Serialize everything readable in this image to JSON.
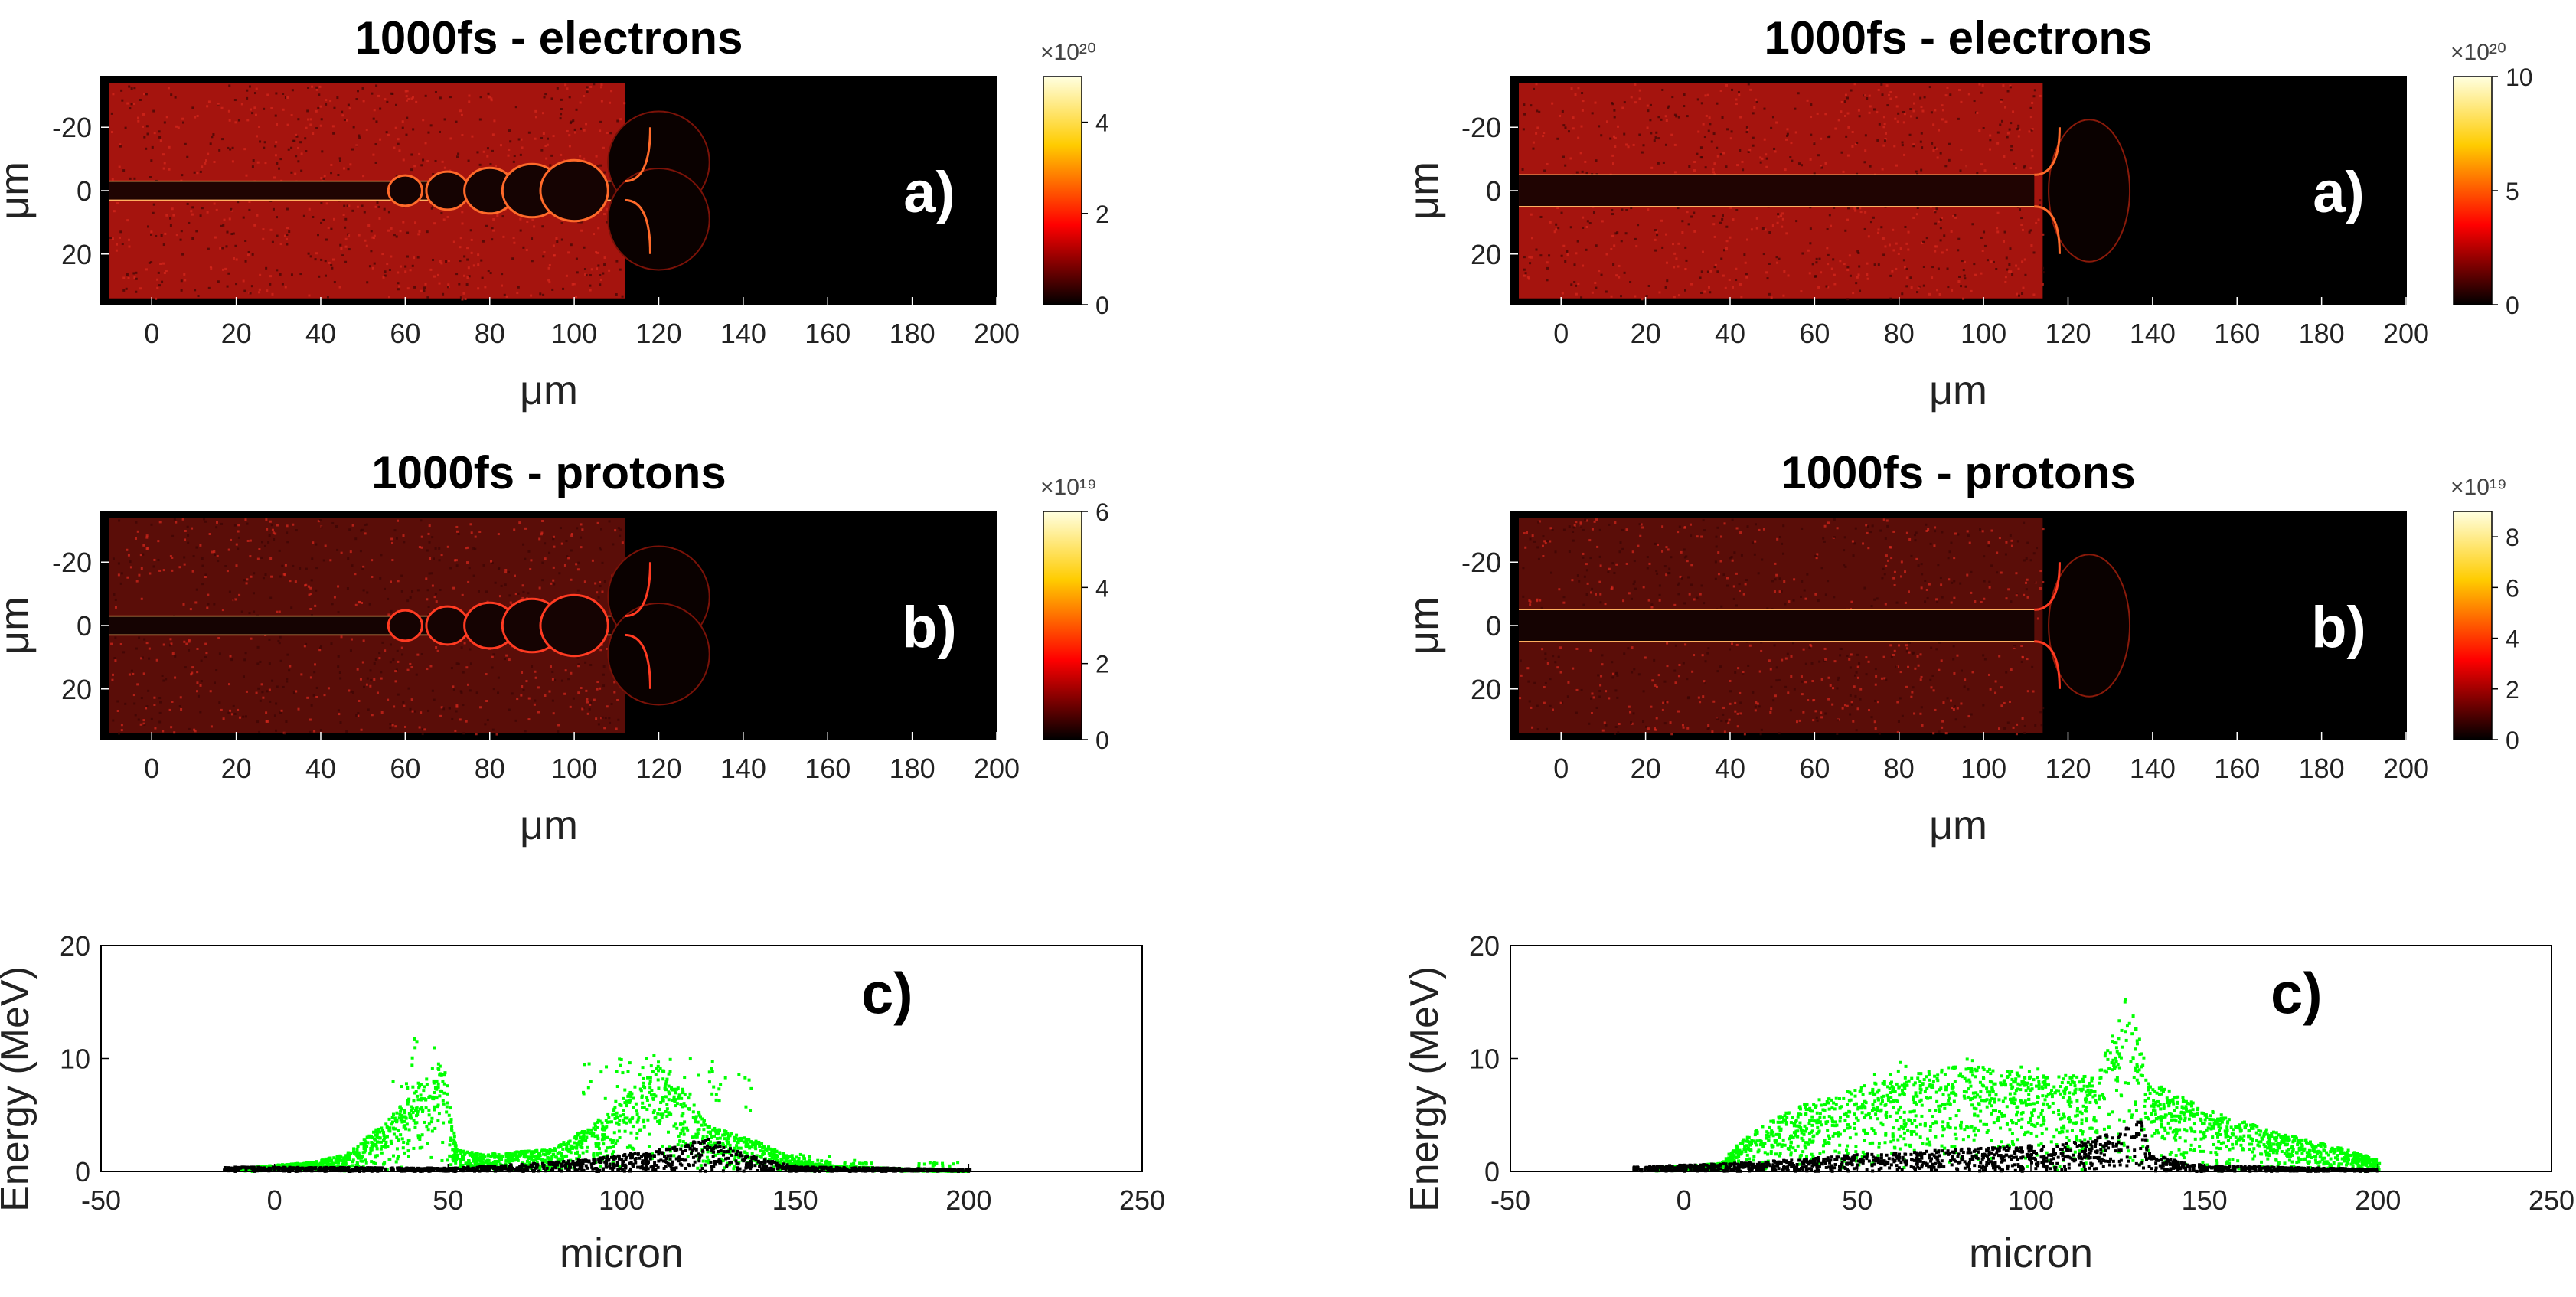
{
  "chart_data": [
    {
      "panel": "top-left",
      "type": "heatmap",
      "title": "1000fs - electrons",
      "label": "a)",
      "xlabel": "μm",
      "ylabel": "μm",
      "xlim": [
        -12,
        200
      ],
      "ylim": [
        -36,
        36
      ],
      "xticks": [
        0,
        20,
        40,
        60,
        80,
        100,
        120,
        140,
        160,
        180,
        200
      ],
      "yticks": [
        -20,
        0,
        20
      ],
      "colorbar": {
        "exponent": "×10²⁰",
        "min": 0,
        "max": 5,
        "ticks": [
          0,
          2,
          4
        ]
      },
      "colormap": "hot",
      "plasma_x_range": [
        -10,
        112
      ],
      "channel_halfwidth": 3,
      "bubbles": [
        [
          60,
          0,
          4
        ],
        [
          70,
          0,
          5
        ],
        [
          80,
          0,
          6
        ],
        [
          90,
          0,
          7
        ],
        [
          100,
          0,
          8
        ]
      ],
      "front_bubble": [
        120,
        9,
        12
      ]
    },
    {
      "panel": "top-right",
      "type": "heatmap",
      "title": "1000fs - electrons",
      "label": "a)",
      "xlabel": "μm",
      "ylabel": "μm",
      "xlim": [
        -12,
        200
      ],
      "ylim": [
        -36,
        36
      ],
      "xticks": [
        0,
        20,
        40,
        60,
        80,
        100,
        120,
        140,
        160,
        180,
        200
      ],
      "yticks": [
        -20,
        0,
        20
      ],
      "colorbar": {
        "exponent": "×10²⁰",
        "min": 0,
        "max": 10,
        "ticks": [
          0,
          5,
          10
        ]
      },
      "colormap": "hot",
      "plasma_x_range": [
        -10,
        114
      ],
      "channel_halfwidth": 5,
      "bubbles": [],
      "front_bubble": [
        125,
        0,
        12
      ]
    },
    {
      "panel": "middle-left",
      "type": "heatmap",
      "title": "1000fs - protons",
      "label": "b)",
      "xlabel": "μm",
      "ylabel": "μm",
      "xlim": [
        -12,
        200
      ],
      "ylim": [
        -36,
        36
      ],
      "xticks": [
        0,
        20,
        40,
        60,
        80,
        100,
        120,
        140,
        160,
        180,
        200
      ],
      "yticks": [
        -20,
        0,
        20
      ],
      "colorbar": {
        "exponent": "×10¹⁹",
        "min": 0,
        "max": 6,
        "ticks": [
          0,
          2,
          4,
          6
        ]
      },
      "colormap": "hot",
      "plasma_x_range": [
        -10,
        112
      ],
      "channel_halfwidth": 3,
      "bubbles": [
        [
          60,
          0,
          4
        ],
        [
          70,
          0,
          5
        ],
        [
          80,
          0,
          6
        ],
        [
          90,
          0,
          7
        ],
        [
          100,
          0,
          8
        ]
      ],
      "front_bubble": [
        120,
        9,
        12
      ]
    },
    {
      "panel": "middle-right",
      "type": "heatmap",
      "title": "1000fs - protons",
      "label": "b)",
      "xlabel": "μm",
      "ylabel": "μm",
      "xlim": [
        -12,
        200
      ],
      "ylim": [
        -36,
        36
      ],
      "xticks": [
        0,
        20,
        40,
        60,
        80,
        100,
        120,
        140,
        160,
        180,
        200
      ],
      "yticks": [
        -20,
        0,
        20
      ],
      "colorbar": {
        "exponent": "×10¹⁹",
        "min": 0,
        "max": 9,
        "ticks": [
          0,
          2,
          4,
          6,
          8
        ]
      },
      "colormap": "hot",
      "plasma_x_range": [
        -10,
        114
      ],
      "channel_halfwidth": 5,
      "bubbles": [],
      "front_bubble": [
        125,
        0,
        12
      ]
    },
    {
      "panel": "bottom-left",
      "type": "scatter",
      "label": "c)",
      "xlabel": "micron",
      "ylabel": "Energy (MeV)",
      "xlim": [
        -50,
        250
      ],
      "ylim": [
        0,
        20
      ],
      "xticks": [
        -50,
        0,
        50,
        100,
        150,
        200,
        250
      ],
      "yticks": [
        0,
        10,
        20
      ],
      "series": [
        {
          "name": "green",
          "color": "#00ff00",
          "envelope": [
            [
              -10,
              0.3
            ],
            [
              10,
              0.8
            ],
            [
              20,
              1.5
            ],
            [
              30,
              4
            ],
            [
              40,
              7
            ],
            [
              48,
              10.5
            ],
            [
              52,
              2
            ],
            [
              60,
              1.5
            ],
            [
              80,
              2
            ],
            [
              95,
              5
            ],
            [
              110,
              9.5
            ],
            [
              118,
              7
            ],
            [
              125,
              4
            ],
            [
              140,
              2.5
            ],
            [
              150,
              1
            ],
            [
              160,
              0.5
            ],
            [
              200,
              0
            ]
          ],
          "sparse": [
            [
              40,
              12
            ],
            [
              95,
              10
            ],
            [
              105,
              11
            ],
            [
              120,
              10.5
            ],
            [
              130,
              9
            ],
            [
              155,
              1.5
            ],
            [
              165,
              1
            ],
            [
              190,
              0.8
            ]
          ]
        },
        {
          "name": "black",
          "color": "#000000",
          "envelope": [
            [
              -15,
              0.4
            ],
            [
              50,
              0.3
            ],
            [
              80,
              0.8
            ],
            [
              100,
              1.5
            ],
            [
              115,
              2.2
            ],
            [
              125,
              3
            ],
            [
              135,
              1.5
            ],
            [
              150,
              0.4
            ],
            [
              200,
              0.2
            ]
          ]
        }
      ]
    },
    {
      "panel": "bottom-right",
      "type": "scatter",
      "label": "c)",
      "xlabel": "micron",
      "ylabel": "Energy (MeV)",
      "xlim": [
        -50,
        250
      ],
      "ylim": [
        0,
        20
      ],
      "xticks": [
        -50,
        0,
        50,
        100,
        150,
        200,
        250
      ],
      "yticks": [
        0,
        10,
        20
      ],
      "series": [
        {
          "name": "green",
          "color": "#00ff00",
          "envelope": [
            [
              -10,
              0.3
            ],
            [
              10,
              0.7
            ],
            [
              17,
              3
            ],
            [
              30,
              5.5
            ],
            [
              50,
              7.5
            ],
            [
              70,
              9
            ],
            [
              85,
              9.5
            ],
            [
              100,
              8.5
            ],
            [
              118,
              8.5
            ],
            [
              123,
              12
            ],
            [
              127,
              15.5
            ],
            [
              130,
              13
            ],
            [
              134,
              8
            ],
            [
              150,
              5.5
            ],
            [
              170,
              3.5
            ],
            [
              190,
              2
            ],
            [
              200,
              1
            ]
          ],
          "sparse": [
            [
              60,
              9.8
            ],
            [
              80,
              10
            ],
            [
              95,
              9.5
            ],
            [
              140,
              6.5
            ]
          ]
        },
        {
          "name": "black",
          "color": "#000000",
          "envelope": [
            [
              -15,
              0.4
            ],
            [
              20,
              0.8
            ],
            [
              50,
              1.5
            ],
            [
              80,
              2
            ],
            [
              110,
              2.5
            ],
            [
              125,
              3.5
            ],
            [
              131,
              5
            ],
            [
              134,
              1.5
            ],
            [
              150,
              0.5
            ],
            [
              200,
              0.2
            ]
          ]
        }
      ]
    }
  ]
}
